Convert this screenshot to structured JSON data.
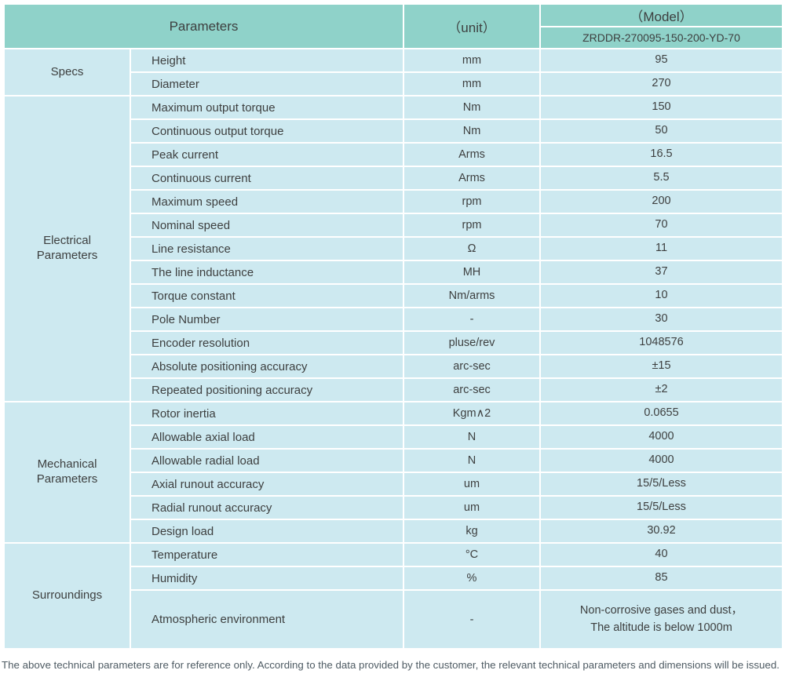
{
  "header": {
    "parameters_label": "Parameters",
    "unit_label": "（unit）",
    "model_label": "（Model）",
    "model_value": "ZRDDR-270095-150-200-YD-70"
  },
  "sections": [
    {
      "group": "Specs",
      "rows": [
        {
          "name": "Height",
          "unit": "mm",
          "value": "95"
        },
        {
          "name": "Diameter",
          "unit": "mm",
          "value": "270"
        }
      ]
    },
    {
      "group": "Electrical\nParameters",
      "rows": [
        {
          "name": "Maximum output torque",
          "unit": "Nm",
          "value": "150"
        },
        {
          "name": "Continuous output torque",
          "unit": "Nm",
          "value": "50"
        },
        {
          "name": "Peak current",
          "unit": "Arms",
          "value": "16.5"
        },
        {
          "name": "Continuous current",
          "unit": "Arms",
          "value": "5.5"
        },
        {
          "name": "Maximum speed",
          "unit": "rpm",
          "value": "200"
        },
        {
          "name": "Nominal speed",
          "unit": "rpm",
          "value": "70"
        },
        {
          "name": "Line resistance",
          "unit": "Ω",
          "value": "11"
        },
        {
          "name": "The line inductance",
          "unit": "MH",
          "value": "37"
        },
        {
          "name": "Torque constant",
          "unit": "Nm/arms",
          "value": "10"
        },
        {
          "name": "Pole Number",
          "unit": "-",
          "value": "30"
        },
        {
          "name": "Encoder resolution",
          "unit": "pluse/rev",
          "value": "1048576"
        },
        {
          "name": "Absolute positioning accuracy",
          "unit": "arc-sec",
          "value": "±15"
        },
        {
          "name": "Repeated positioning accuracy",
          "unit": "arc-sec",
          "value": "±2"
        }
      ]
    },
    {
      "group": "Mechanical\nParameters",
      "rows": [
        {
          "name": "Rotor inertia",
          "unit": "Kgm∧2",
          "value": "0.0655"
        },
        {
          "name": "Allowable axial load",
          "unit": "N",
          "value": "4000"
        },
        {
          "name": "Allowable radial load",
          "unit": "N",
          "value": "4000"
        },
        {
          "name": "Axial runout accuracy",
          "unit": "um",
          "value": "15/5/Less"
        },
        {
          "name": "Radial runout accuracy",
          "unit": "um",
          "value": "15/5/Less"
        },
        {
          "name": "Design load",
          "unit": "kg",
          "value": "30.92"
        }
      ]
    },
    {
      "group": "Surroundings",
      "rows": [
        {
          "name": "Temperature",
          "unit": "°C",
          "value": "40"
        },
        {
          "name": "Humidity",
          "unit": "%",
          "value": "85"
        },
        {
          "name": "Atmospheric environment",
          "unit": "-",
          "value": "Non-corrosive gases and dust，\nThe altitude is below 1000m",
          "tall": true
        }
      ]
    }
  ],
  "footer": {
    "note": "The above technical parameters are for reference only. According to the data provided by the customer, the relevant technical parameters and dimensions will be issued."
  },
  "colors": {
    "header_bg": "#8fd2c9",
    "row_bg": "#cde9f0",
    "separator": "#ffffff",
    "text": "#3d3f3f",
    "footer_text": "#4e5b63"
  }
}
